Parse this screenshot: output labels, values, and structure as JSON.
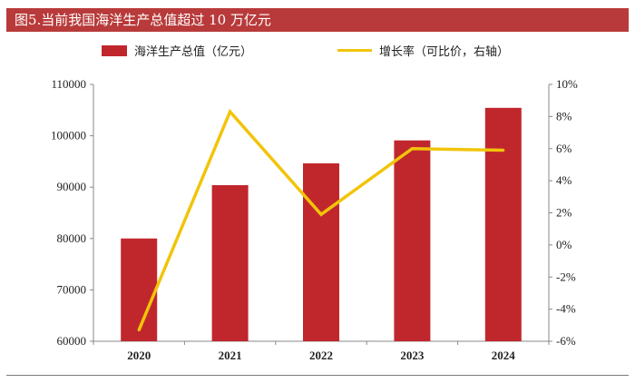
{
  "title": "图5.当前我国海洋生产总值超过 10 万亿元",
  "legend": {
    "bar_label": "海洋生产总值（亿元）",
    "line_label": "增长率（可比价，右轴）"
  },
  "colors": {
    "title_bar": "#b83a3a",
    "bar": "#c0272d",
    "line": "#f2c40a"
  },
  "chart_data": {
    "type": "bar",
    "categories": [
      "2020",
      "2021",
      "2022",
      "2023",
      "2024"
    ],
    "series": [
      {
        "name": "海洋生产总值（亿元）",
        "type": "bar",
        "axis": "left",
        "values": [
          80010,
          90385,
          94628,
          99097,
          105438
        ]
      },
      {
        "name": "增长率（可比价，右轴）",
        "type": "line",
        "axis": "right",
        "values": [
          -5.3,
          8.3,
          1.9,
          6.0,
          5.9
        ]
      }
    ],
    "y_left": {
      "range": [
        60000,
        110000
      ],
      "ticks": [
        "60000",
        "70000",
        "80000",
        "90000",
        "100000",
        "110000"
      ],
      "tick_values": [
        60000,
        70000,
        80000,
        90000,
        100000,
        110000
      ]
    },
    "y_right": {
      "range": [
        -6,
        10
      ],
      "ticks": [
        "-6%",
        "-4%",
        "-2%",
        "0%",
        "2%",
        "4%",
        "6%",
        "8%",
        "10%"
      ],
      "tick_values": [
        -6,
        -4,
        -2,
        0,
        2,
        4,
        6,
        8,
        10
      ]
    },
    "grid": false,
    "legend_position": "top"
  }
}
